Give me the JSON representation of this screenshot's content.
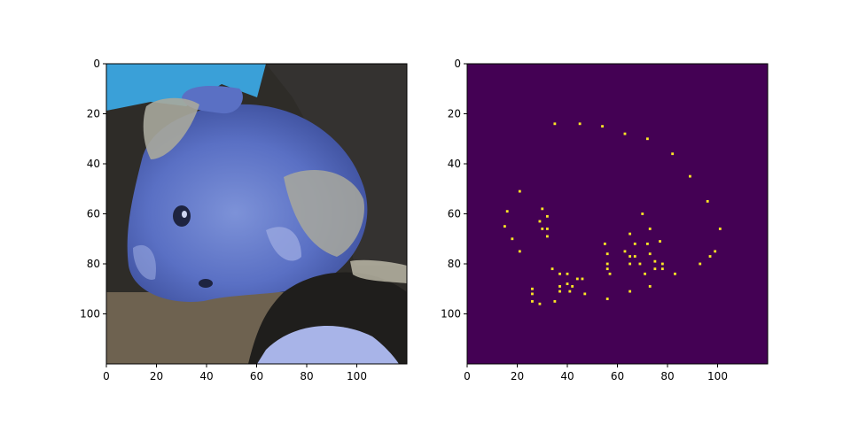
{
  "chart_data": [
    {
      "type": "image",
      "panel": "left",
      "description_colors": {
        "sky": "#3aa0d8",
        "background_dark": "#2e2c28",
        "floor_brown": "#6e6250",
        "skin_blue": "#5a74c8",
        "skin_highlight": "#9aa8e0",
        "hair_gray": "#a8a89c"
      },
      "xlim": [
        0,
        120
      ],
      "ylim": [
        120,
        0
      ],
      "x_ticks": [
        0,
        20,
        40,
        60,
        80,
        100
      ],
      "y_ticks": [
        0,
        20,
        40,
        60,
        80,
        100
      ],
      "title": "",
      "xlabel": "",
      "ylabel": ""
    },
    {
      "type": "heatmap",
      "panel": "right",
      "background_color": "#440154",
      "point_color": "#fde725",
      "xlim": [
        0,
        120
      ],
      "ylim": [
        120,
        0
      ],
      "x_ticks": [
        0,
        20,
        40,
        60,
        80,
        100
      ],
      "y_ticks": [
        0,
        20,
        40,
        60,
        80,
        100
      ],
      "title": "",
      "xlabel": "",
      "ylabel": "",
      "points": [
        [
          35,
          24
        ],
        [
          45,
          24
        ],
        [
          54,
          25
        ],
        [
          63,
          28
        ],
        [
          72,
          30
        ],
        [
          82,
          36
        ],
        [
          89,
          45
        ],
        [
          21,
          51
        ],
        [
          96,
          55
        ],
        [
          16,
          59
        ],
        [
          30,
          58
        ],
        [
          70,
          60
        ],
        [
          32,
          61
        ],
        [
          29,
          63
        ],
        [
          15,
          65
        ],
        [
          30,
          66
        ],
        [
          32,
          66
        ],
        [
          73,
          66
        ],
        [
          101,
          66
        ],
        [
          32,
          69
        ],
        [
          65,
          68
        ],
        [
          18,
          70
        ],
        [
          55,
          72
        ],
        [
          67,
          72
        ],
        [
          72,
          72
        ],
        [
          77,
          71
        ],
        [
          21,
          75
        ],
        [
          63,
          75
        ],
        [
          73,
          76
        ],
        [
          99,
          75
        ],
        [
          56,
          76
        ],
        [
          65,
          77
        ],
        [
          67,
          77
        ],
        [
          97,
          77
        ],
        [
          56,
          80
        ],
        [
          65,
          80
        ],
        [
          69,
          80
        ],
        [
          75,
          79
        ],
        [
          78,
          80
        ],
        [
          93,
          80
        ],
        [
          56,
          82
        ],
        [
          75,
          82
        ],
        [
          78,
          82
        ],
        [
          57,
          84
        ],
        [
          71,
          84
        ],
        [
          83,
          84
        ],
        [
          34,
          82
        ],
        [
          37,
          84
        ],
        [
          40,
          84
        ],
        [
          44,
          86
        ],
        [
          46,
          86
        ],
        [
          40,
          88
        ],
        [
          37,
          89
        ],
        [
          26,
          90
        ],
        [
          42,
          89
        ],
        [
          73,
          89
        ],
        [
          37,
          91
        ],
        [
          41,
          91
        ],
        [
          47,
          92
        ],
        [
          65,
          91
        ],
        [
          26,
          92
        ],
        [
          35,
          95
        ],
        [
          56,
          94
        ],
        [
          26,
          95
        ],
        [
          29,
          96
        ]
      ]
    }
  ]
}
